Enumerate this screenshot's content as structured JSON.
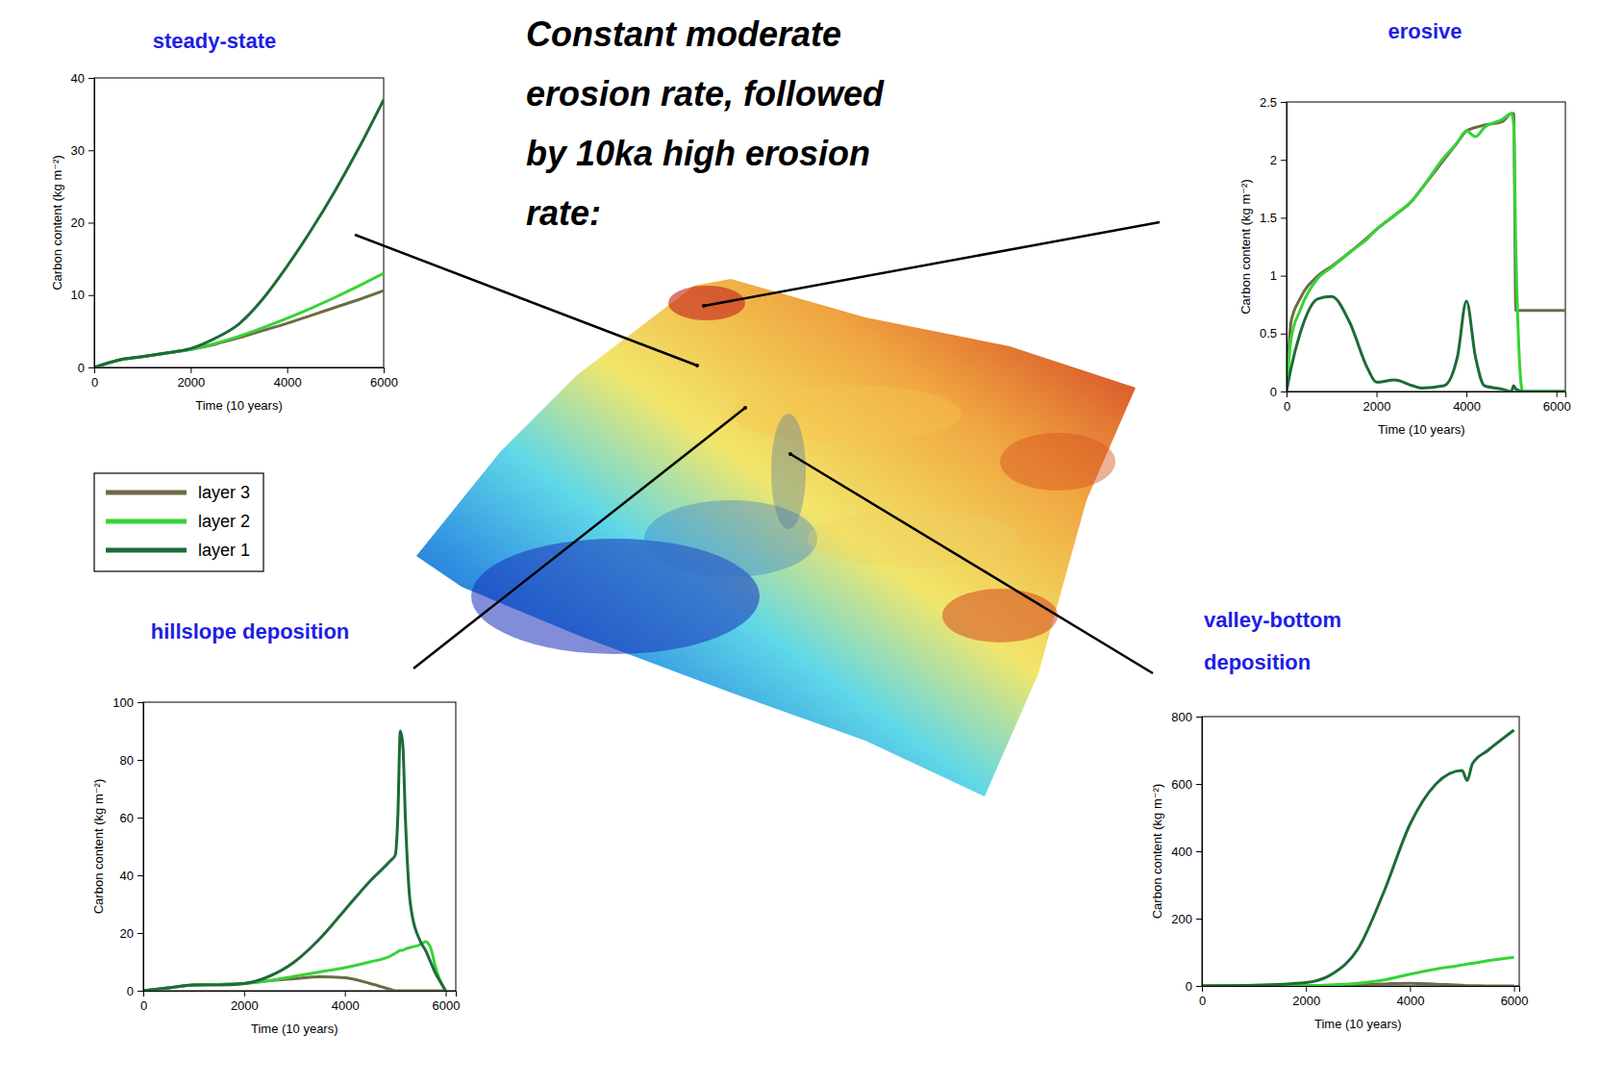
{
  "heading": "Constant moderate erosion rate, followed by 10ka high erosion rate:",
  "chart_data": [
    {
      "type": "line",
      "title": "steady-state",
      "x_label": "Time (10 years)",
      "y_label": "Carbon content (kg m⁻²)",
      "xlim": [
        0,
        6000
      ],
      "xticks": [
        0,
        2000,
        4000,
        6000
      ],
      "ylim": [
        0,
        40
      ],
      "yticks": [
        0,
        10,
        20,
        30,
        40
      ],
      "legend": "below",
      "x": [
        0,
        500,
        1000,
        1500,
        2000,
        2500,
        3000,
        3500,
        4000,
        4500,
        5000,
        5500,
        6000
      ],
      "series": [
        {
          "name": "layer 3",
          "color": "#6e6b45",
          "values": [
            0,
            1,
            1.5,
            2,
            2.5,
            3.2,
            4.1,
            5.1,
            6.1,
            7.2,
            8.3,
            9.4,
            10.6
          ]
        },
        {
          "name": "layer 2",
          "color": "#35d435",
          "values": [
            0,
            1,
            1.5,
            2,
            2.5,
            3.3,
            4.3,
            5.5,
            6.8,
            8.2,
            9.7,
            11.3,
            13
          ]
        },
        {
          "name": "layer 1",
          "color": "#1d6b38",
          "values": [
            0,
            1,
            1.5,
            2,
            2.6,
            4,
            6,
            9.5,
            14,
            19,
            24.5,
            30.5,
            37
          ]
        }
      ]
    },
    {
      "type": "line",
      "title": "erosive",
      "x_label": "Time (10 years)",
      "y_label": "Carbon content (kg m⁻²)",
      "xlim": [
        0,
        6200
      ],
      "xticks": [
        0,
        2000,
        4000,
        6000
      ],
      "ylim": [
        0,
        2.5
      ],
      "yticks": [
        0,
        0.5,
        1,
        1.5,
        2,
        2.5
      ],
      "x": [
        0,
        100,
        300,
        700,
        1000,
        1400,
        1800,
        2000,
        2400,
        2800,
        3000,
        3500,
        3800,
        4000,
        4200,
        4400,
        4800,
        5000,
        5050,
        5100,
        5250,
        5500,
        6000,
        6200
      ],
      "series": [
        {
          "name": "layer 3",
          "color": "#6e6b45",
          "values": [
            0,
            0.6,
            0.8,
            1.0,
            1.08,
            1.2,
            1.33,
            1.4,
            1.52,
            1.65,
            1.75,
            2.0,
            2.15,
            2.25,
            2.28,
            2.3,
            2.33,
            2.4,
            2.4,
            0.7,
            0.7,
            0.7,
            0.7,
            0.7
          ]
        },
        {
          "name": "layer 2",
          "color": "#35d435",
          "values": [
            0,
            0.45,
            0.7,
            0.98,
            1.07,
            1.2,
            1.32,
            1.4,
            1.52,
            1.65,
            1.75,
            2.02,
            2.15,
            2.25,
            2.2,
            2.28,
            2.35,
            2.4,
            2.3,
            1.2,
            0,
            0,
            0,
            0
          ]
        },
        {
          "name": "layer 1",
          "color": "#1d6b38",
          "values": [
            0,
            0.2,
            0.5,
            0.8,
            0.82,
            0.6,
            0.2,
            0.08,
            0.1,
            0.05,
            0.03,
            0.05,
            0.3,
            0.78,
            0.3,
            0.05,
            0.02,
            0,
            0.05,
            0.02,
            0,
            0,
            0,
            0
          ]
        }
      ]
    },
    {
      "type": "line",
      "title": "hillslope deposition",
      "x_label": "Time (10 years)",
      "y_label": "Carbon content (kg m⁻²)",
      "xlim": [
        0,
        6200
      ],
      "xticks": [
        0,
        2000,
        4000,
        6000
      ],
      "ylim": [
        0,
        100
      ],
      "yticks": [
        0,
        20,
        40,
        60,
        80,
        100
      ],
      "x": [
        0,
        500,
        1000,
        1500,
        2000,
        2500,
        3000,
        3500,
        4000,
        4500,
        4900,
        5000,
        5050,
        5100,
        5150,
        5200,
        5300,
        5500,
        5600,
        5700,
        5800,
        5900,
        6000
      ],
      "series": [
        {
          "name": "layer 3",
          "color": "#6e6b45",
          "values": [
            0,
            1,
            2,
            2.2,
            2.5,
            3.5,
            4.2,
            4.8,
            4.5,
            2.5,
            0.5,
            0,
            0,
            0,
            0,
            0,
            0,
            0,
            0,
            0,
            0,
            0,
            0
          ]
        },
        {
          "name": "layer 2",
          "color": "#35d435",
          "values": [
            0,
            1,
            2,
            2.2,
            2.5,
            3.5,
            5,
            6.5,
            8,
            10,
            12,
            13,
            13.5,
            14,
            14,
            14.5,
            15,
            16,
            17,
            15,
            8,
            3,
            0
          ]
        },
        {
          "name": "layer 1",
          "color": "#1d6b38",
          "values": [
            0,
            1,
            2,
            2,
            2.5,
            5,
            10,
            18,
            28,
            38,
            45,
            47,
            60,
            90,
            85,
            60,
            30,
            17,
            14,
            10,
            6,
            3,
            0
          ]
        }
      ]
    },
    {
      "type": "line",
      "title": "valley-bottom deposition",
      "x_label": "Time (10 years)",
      "y_label": "Carbon content (kg m⁻²)",
      "xlim": [
        0,
        6100
      ],
      "xticks": [
        0,
        2000,
        4000,
        6000
      ],
      "ylim": [
        0,
        800
      ],
      "yticks": [
        0,
        200,
        400,
        600,
        800
      ],
      "x": [
        0,
        1000,
        2000,
        2500,
        3000,
        3500,
        4000,
        4500,
        5000,
        5100,
        5200,
        5500,
        6000
      ],
      "series": [
        {
          "name": "layer 3",
          "color": "#6e6b45",
          "values": [
            0,
            0,
            1,
            2,
            4,
            6,
            8,
            5,
            2,
            1,
            1,
            0,
            0
          ]
        },
        {
          "name": "layer 2",
          "color": "#35d435",
          "values": [
            0,
            0,
            1,
            3,
            8,
            18,
            35,
            50,
            62,
            65,
            67,
            75,
            85
          ]
        },
        {
          "name": "layer 1",
          "color": "#1d6b38",
          "values": [
            0,
            2,
            10,
            35,
            110,
            280,
            480,
            600,
            640,
            610,
            660,
            700,
            760
          ]
        }
      ]
    }
  ]
}
